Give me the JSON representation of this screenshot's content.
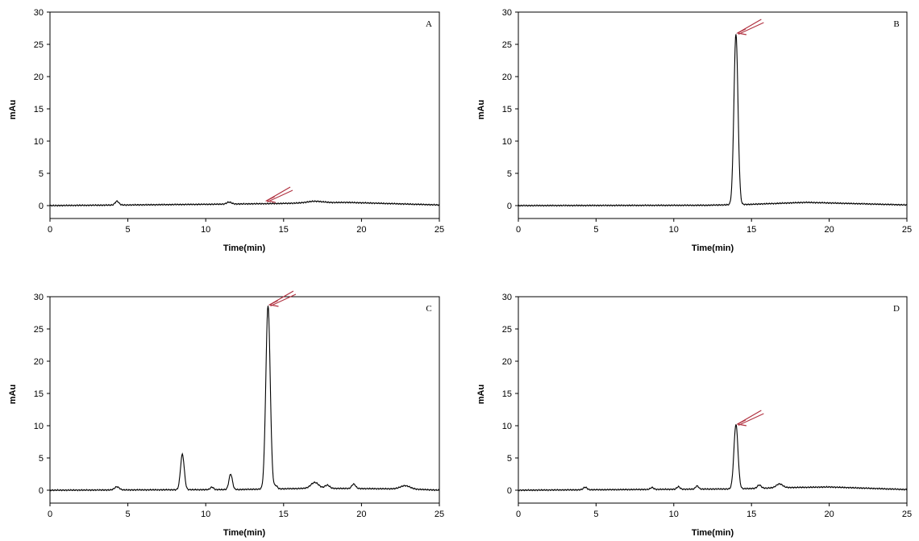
{
  "chart_data": [
    {
      "type": "line",
      "panel": "A",
      "xlabel": "Time(min)",
      "ylabel": "mAu",
      "xlim": [
        0,
        25
      ],
      "ylim": [
        -2,
        30
      ],
      "xticks": [
        0,
        5,
        10,
        15,
        20,
        25
      ],
      "yticks": [
        0,
        5,
        10,
        15,
        20,
        25,
        30
      ],
      "grid": false,
      "peaks": [
        {
          "t": 4.3,
          "h": 0.6,
          "w": 0.12
        },
        {
          "t": 11.5,
          "h": 0.3,
          "w": 0.15
        },
        {
          "t": 17.0,
          "h": 0.25,
          "w": 0.5
        }
      ],
      "baseline": [
        [
          0,
          0.0
        ],
        [
          10,
          0.2
        ],
        [
          14,
          0.3
        ],
        [
          19,
          0.5
        ],
        [
          25,
          0.1
        ]
      ],
      "arrow_at": [
        13.8,
        0.5
      ]
    },
    {
      "type": "line",
      "panel": "B",
      "xlabel": "Time(min)",
      "ylabel": "mAu",
      "xlim": [
        0,
        25
      ],
      "ylim": [
        -2,
        30
      ],
      "xticks": [
        0,
        5,
        10,
        15,
        20,
        25
      ],
      "yticks": [
        0,
        5,
        10,
        15,
        20,
        25,
        30
      ],
      "grid": false,
      "peaks": [
        {
          "t": 14.0,
          "h": 26.5,
          "w": 0.13
        }
      ],
      "baseline": [
        [
          0,
          0.0
        ],
        [
          12,
          0.05
        ],
        [
          15,
          0.2
        ],
        [
          18.5,
          0.5
        ],
        [
          25,
          0.1
        ]
      ],
      "arrow_at": [
        14.0,
        26.5
      ]
    },
    {
      "type": "line",
      "panel": "C",
      "xlabel": "Time(min)",
      "ylabel": "mAu",
      "xlim": [
        0,
        25
      ],
      "ylim": [
        -2,
        30
      ],
      "xticks": [
        0,
        5,
        10,
        15,
        20,
        25
      ],
      "yticks": [
        0,
        5,
        10,
        15,
        20,
        25,
        30
      ],
      "grid": false,
      "peaks": [
        {
          "t": 4.3,
          "h": 0.5,
          "w": 0.15
        },
        {
          "t": 8.5,
          "h": 5.5,
          "w": 0.12
        },
        {
          "t": 10.4,
          "h": 0.4,
          "w": 0.1
        },
        {
          "t": 11.6,
          "h": 2.4,
          "w": 0.11
        },
        {
          "t": 14.0,
          "h": 28.5,
          "w": 0.14
        },
        {
          "t": 14.5,
          "h": 0.5,
          "w": 0.1
        },
        {
          "t": 17.0,
          "h": 0.9,
          "w": 0.25
        },
        {
          "t": 17.8,
          "h": 0.5,
          "w": 0.15
        },
        {
          "t": 19.5,
          "h": 0.7,
          "w": 0.12
        },
        {
          "t": 22.8,
          "h": 0.5,
          "w": 0.3
        }
      ],
      "baseline": [
        [
          0,
          0.0
        ],
        [
          12,
          0.1
        ],
        [
          17,
          0.3
        ],
        [
          23,
          0.2
        ],
        [
          25,
          0.0
        ]
      ],
      "arrow_at": [
        14.0,
        28.5
      ]
    },
    {
      "type": "line",
      "panel": "D",
      "xlabel": "Time(min)",
      "ylabel": "mAu",
      "xlim": [
        0,
        25
      ],
      "ylim": [
        -2,
        30
      ],
      "xticks": [
        0,
        5,
        10,
        15,
        20,
        25
      ],
      "yticks": [
        0,
        5,
        10,
        15,
        20,
        25,
        30
      ],
      "grid": false,
      "peaks": [
        {
          "t": 4.3,
          "h": 0.4,
          "w": 0.12
        },
        {
          "t": 8.6,
          "h": 0.3,
          "w": 0.1
        },
        {
          "t": 10.3,
          "h": 0.4,
          "w": 0.1
        },
        {
          "t": 11.5,
          "h": 0.5,
          "w": 0.1
        },
        {
          "t": 14.0,
          "h": 10.0,
          "w": 0.13
        },
        {
          "t": 15.5,
          "h": 0.5,
          "w": 0.12
        },
        {
          "t": 16.8,
          "h": 0.6,
          "w": 0.2
        }
      ],
      "baseline": [
        [
          0,
          0.0
        ],
        [
          14,
          0.2
        ],
        [
          17,
          0.4
        ],
        [
          20,
          0.5
        ],
        [
          25,
          0.1
        ]
      ],
      "arrow_at": [
        14.0,
        10.0
      ]
    }
  ],
  "colors": {
    "trace": "#000000",
    "axis": "#000000",
    "arrow": "#b0303f"
  }
}
